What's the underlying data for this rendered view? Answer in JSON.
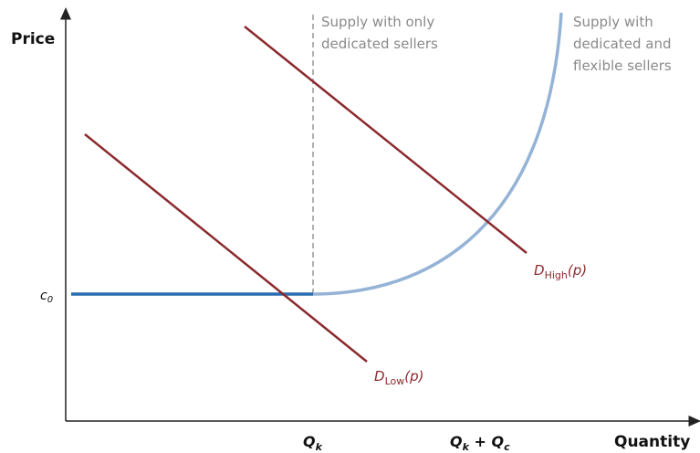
{
  "axes": {
    "y_label": "Price",
    "x_label": "Quantity"
  },
  "ticks": {
    "c0": {
      "main": "c",
      "sub": "0"
    },
    "qk": {
      "main": "Q",
      "sub": "k"
    },
    "qkqc": {
      "main1": "Q",
      "sub1": "k",
      "mid": " + ",
      "main2": "Q",
      "sub2": "c"
    }
  },
  "supply_dedicated": {
    "lines": [
      "Supply with only",
      "dedicated sellers"
    ]
  },
  "supply_flexible": {
    "lines": [
      "Supply with",
      "dedicated and",
      "flexible sellers"
    ]
  },
  "demand_low": {
    "main": "D",
    "sub": "Low",
    "tail": "(p)"
  },
  "demand_high": {
    "main": "D",
    "sub": "High",
    "tail": "(p)"
  }
}
